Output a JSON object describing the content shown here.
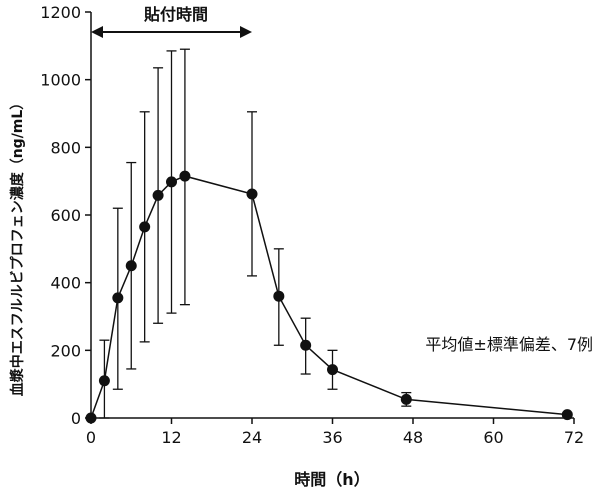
{
  "chart_data": {
    "type": "line",
    "title": "",
    "xlabel": "時間（h）",
    "ylabel": "血漿中エスフルルビプロフェン濃度（ng/mL）",
    "xlim": [
      0,
      72
    ],
    "ylim": [
      0,
      1200
    ],
    "xticks": [
      0,
      12,
      24,
      36,
      48,
      60,
      72
    ],
    "yticks": [
      0,
      200,
      400,
      600,
      800,
      1000,
      1200
    ],
    "grid": false,
    "series": [
      {
        "points": [
          {
            "x": 0,
            "y": 0,
            "err_low": 0,
            "err_high": 0
          },
          {
            "x": 2,
            "y": 110,
            "err_low": 0,
            "err_high": 230
          },
          {
            "x": 4,
            "y": 355,
            "err_low": 85,
            "err_high": 620
          },
          {
            "x": 6,
            "y": 450,
            "err_low": 145,
            "err_high": 755
          },
          {
            "x": 8,
            "y": 565,
            "err_low": 225,
            "err_high": 905
          },
          {
            "x": 10,
            "y": 658,
            "err_low": 280,
            "err_high": 1035
          },
          {
            "x": 12,
            "y": 698,
            "err_low": 310,
            "err_high": 1085
          },
          {
            "x": 14,
            "y": 715,
            "err_low": 335,
            "err_high": 1090
          },
          {
            "x": 24,
            "y": 662,
            "err_low": 420,
            "err_high": 905
          },
          {
            "x": 28,
            "y": 360,
            "err_low": 215,
            "err_high": 500
          },
          {
            "x": 32,
            "y": 215,
            "err_low": 130,
            "err_high": 295
          },
          {
            "x": 36,
            "y": 143,
            "err_low": 85,
            "err_high": 200
          },
          {
            "x": 47,
            "y": 55,
            "err_low": 35,
            "err_high": 75
          },
          {
            "x": 71,
            "y": 10,
            "err_low": 5,
            "err_high": 15
          }
        ]
      }
    ],
    "annotations": {
      "application_period_label": "貼付時間",
      "application_period": [
        0,
        24
      ],
      "note": "平均値±標準偏差、7例"
    }
  }
}
